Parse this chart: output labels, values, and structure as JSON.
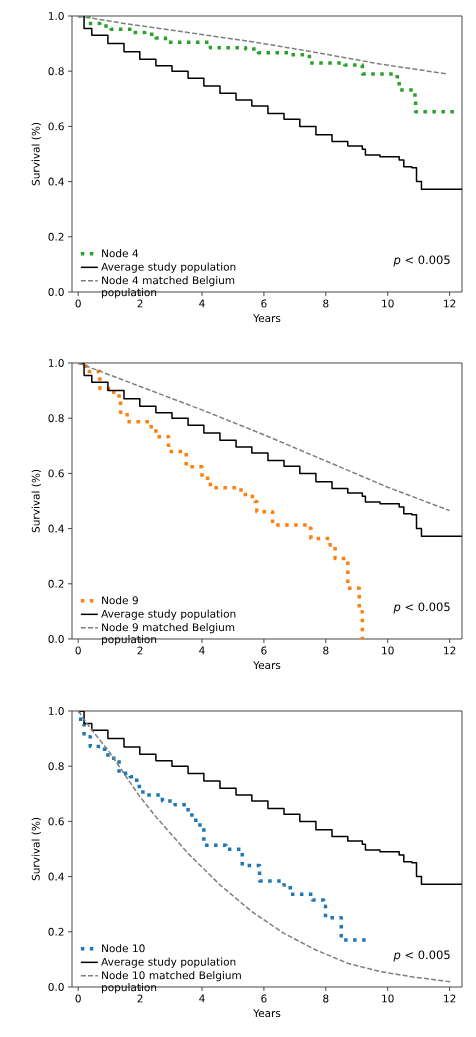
{
  "chart_data": [
    {
      "type": "step",
      "xlabel": "Years",
      "ylabel": "Survival (%)",
      "xlim": [
        -0.2,
        12.4
      ],
      "ylim": [
        0,
        1
      ],
      "xticks": [
        0,
        2,
        4,
        6,
        8,
        10,
        12
      ],
      "yticks": [
        {
          "value": 0,
          "label": "0.0"
        },
        {
          "value": 0.2,
          "label": "0.2"
        },
        {
          "value": 0.4,
          "label": "0.4"
        },
        {
          "value": 0.6,
          "label": "0.6"
        },
        {
          "value": 0.8,
          "label": "0.8"
        },
        {
          "value": 1,
          "label": "1.0"
        }
      ],
      "legend": "bottom left",
      "annotations": [
        "*p* < 0.005"
      ],
      "series": [
        {
          "name": "Node 4",
          "color": "#2ca02c",
          "line_style": "dotted",
          "x": [
            0,
            0.34,
            0.7,
            1.06,
            1.79,
            2.15,
            2.51,
            2.82,
            3.96,
            4.27,
            5.41,
            5.82,
            6.85,
            7.47,
            8.61,
            9.18,
            10.3,
            10.37,
            10.88,
            10.9,
            12.2
          ],
          "values": [
            1.0,
            0.973,
            0.964,
            0.952,
            0.94,
            0.934,
            0.92,
            0.905,
            0.905,
            0.885,
            0.88,
            0.867,
            0.86,
            0.83,
            0.822,
            0.79,
            0.78,
            0.732,
            0.7,
            0.653,
            0.653
          ]
        },
        {
          "name": "Average study population",
          "color": "#000000",
          "line_style": "solid",
          "x": [
            0,
            0.19,
            0.44,
            0.96,
            1.48,
            1.99,
            2.51,
            3.03,
            3.55,
            4.06,
            4.58,
            5.1,
            5.61,
            6.13,
            6.65,
            7.16,
            7.68,
            8.2,
            8.71,
            9.18,
            9.28,
            9.75,
            10.37,
            10.52,
            10.78,
            10.93,
            11.09,
            12.4
          ],
          "values": [
            1.0,
            0.955,
            0.93,
            0.9,
            0.87,
            0.843,
            0.82,
            0.8,
            0.774,
            0.746,
            0.72,
            0.696,
            0.674,
            0.647,
            0.626,
            0.6,
            0.57,
            0.545,
            0.529,
            0.517,
            0.496,
            0.49,
            0.478,
            0.454,
            0.45,
            0.4,
            0.372,
            0.372
          ]
        },
        {
          "name": "Node 4 matched Belgium population",
          "type": "line",
          "color": "#7f7f7f",
          "line_style": "dashed",
          "x": [
            0,
            1.48,
            3.55,
            5.61,
            7.68,
            9.75,
            11.92
          ],
          "values": [
            1.0,
            0.973,
            0.94,
            0.907,
            0.868,
            0.826,
            0.79
          ]
        }
      ]
    },
    {
      "type": "step",
      "xlabel": "Years",
      "ylabel": "Survival (%)",
      "xlim": [
        -0.2,
        12.4
      ],
      "ylim": [
        0,
        1
      ],
      "xticks": [
        0,
        2,
        4,
        6,
        8,
        10,
        12
      ],
      "yticks": [
        {
          "value": 0,
          "label": "0.0"
        },
        {
          "value": 0.2,
          "label": "0.2"
        },
        {
          "value": 0.4,
          "label": "0.4"
        },
        {
          "value": 0.6,
          "label": "0.6"
        },
        {
          "value": 0.8,
          "label": "0.8"
        },
        {
          "value": 1,
          "label": "1.0"
        }
      ],
      "legend": "bottom left",
      "annotations": [
        "*p* < 0.005"
      ],
      "series": [
        {
          "name": "Node 9",
          "color": "#ff7f0e",
          "line_style": "dotted",
          "x": [
            0,
            0.24,
            0.7,
            1.06,
            1.32,
            1.37,
            1.58,
            2.3,
            2.51,
            2.92,
            3.49,
            4.0,
            4.27,
            5.1,
            5.4,
            5.71,
            5.77,
            6.28,
            7.42,
            7.52,
            8.14,
            8.3,
            8.71,
            9.08,
            9.18
          ],
          "values": [
            1.0,
            0.969,
            0.908,
            0.894,
            0.866,
            0.821,
            0.787,
            0.769,
            0.733,
            0.679,
            0.624,
            0.582,
            0.548,
            0.54,
            0.516,
            0.498,
            0.461,
            0.413,
            0.401,
            0.364,
            0.34,
            0.292,
            0.184,
            0.099,
            0.0
          ]
        },
        {
          "name": "Average study population",
          "color": "#000000",
          "line_style": "solid",
          "x": [
            0,
            0.19,
            0.44,
            0.96,
            1.48,
            1.99,
            2.51,
            3.03,
            3.55,
            4.06,
            4.58,
            5.1,
            5.61,
            6.13,
            6.65,
            7.16,
            7.68,
            8.2,
            8.71,
            9.18,
            9.28,
            9.75,
            10.37,
            10.52,
            10.78,
            10.93,
            11.09,
            12.4
          ],
          "values": [
            1.0,
            0.955,
            0.93,
            0.9,
            0.87,
            0.843,
            0.82,
            0.8,
            0.774,
            0.746,
            0.72,
            0.696,
            0.674,
            0.647,
            0.626,
            0.6,
            0.57,
            0.545,
            0.529,
            0.517,
            0.496,
            0.49,
            0.478,
            0.454,
            0.45,
            0.4,
            0.372,
            0.372
          ]
        },
        {
          "name": "Node 9 matched Belgium population",
          "type": "line",
          "color": "#7f7f7f",
          "line_style": "dashed",
          "x": [
            0,
            2,
            4,
            6,
            8,
            10,
            12
          ],
          "values": [
            1.0,
            0.915,
            0.83,
            0.74,
            0.645,
            0.55,
            0.465
          ]
        }
      ]
    },
    {
      "type": "step",
      "xlabel": "Years",
      "ylabel": "Survival (%)",
      "xlim": [
        -0.2,
        12.4
      ],
      "ylim": [
        0,
        1
      ],
      "xticks": [
        0,
        2,
        4,
        6,
        8,
        10,
        12
      ],
      "yticks": [
        {
          "value": 0,
          "label": "0.0"
        },
        {
          "value": 0.2,
          "label": "0.2"
        },
        {
          "value": 0.4,
          "label": "0.4"
        },
        {
          "value": 0.6,
          "label": "0.6"
        },
        {
          "value": 0.8,
          "label": "0.8"
        },
        {
          "value": 1,
          "label": "1.0"
        }
      ],
      "legend": "bottom left",
      "annotations": [
        "*p* < 0.005"
      ],
      "series": [
        {
          "name": "Node 10",
          "color": "#1f77b4",
          "line_style": "dotted",
          "x": [
            0,
            0.08,
            0.19,
            0.39,
            0.75,
            0.96,
            1.32,
            1.68,
            1.89,
            2.09,
            2.72,
            3.13,
            3.55,
            3.8,
            4.06,
            4.78,
            5.3,
            5.86,
            6.65,
            6.85,
            7.57,
            7.93,
            7.99,
            8.4,
            8.5,
            9.33
          ],
          "values": [
            1.0,
            0.953,
            0.907,
            0.871,
            0.861,
            0.829,
            0.774,
            0.762,
            0.726,
            0.696,
            0.674,
            0.66,
            0.623,
            0.587,
            0.514,
            0.499,
            0.44,
            0.384,
            0.37,
            0.336,
            0.315,
            0.293,
            0.251,
            0.251,
            0.17,
            0.17
          ]
        },
        {
          "name": "Average study population",
          "color": "#000000",
          "line_style": "solid",
          "x": [
            0,
            0.19,
            0.44,
            0.96,
            1.48,
            1.99,
            2.51,
            3.03,
            3.55,
            4.06,
            4.58,
            5.1,
            5.61,
            6.13,
            6.65,
            7.16,
            7.68,
            8.2,
            8.71,
            9.18,
            9.28,
            9.75,
            10.37,
            10.52,
            10.78,
            10.93,
            11.09,
            12.4
          ],
          "values": [
            1.0,
            0.955,
            0.93,
            0.9,
            0.87,
            0.843,
            0.82,
            0.8,
            0.774,
            0.746,
            0.72,
            0.696,
            0.674,
            0.647,
            0.626,
            0.6,
            0.57,
            0.545,
            0.529,
            0.517,
            0.496,
            0.49,
            0.478,
            0.454,
            0.45,
            0.4,
            0.372,
            0.372
          ]
        },
        {
          "name": "Node 10 matched Belgium population",
          "type": "line",
          "color": "#7f7f7f",
          "line_style": "dashed",
          "x": [
            0,
            0.44,
            0.96,
            1.99,
            2.51,
            3.55,
            4.58,
            5.61,
            6.65,
            7.68,
            8.71,
            9.75,
            10.78,
            12.02
          ],
          "values": [
            1.0,
            0.931,
            0.859,
            0.69,
            0.617,
            0.484,
            0.37,
            0.273,
            0.194,
            0.134,
            0.086,
            0.056,
            0.037,
            0.019
          ]
        }
      ]
    }
  ]
}
